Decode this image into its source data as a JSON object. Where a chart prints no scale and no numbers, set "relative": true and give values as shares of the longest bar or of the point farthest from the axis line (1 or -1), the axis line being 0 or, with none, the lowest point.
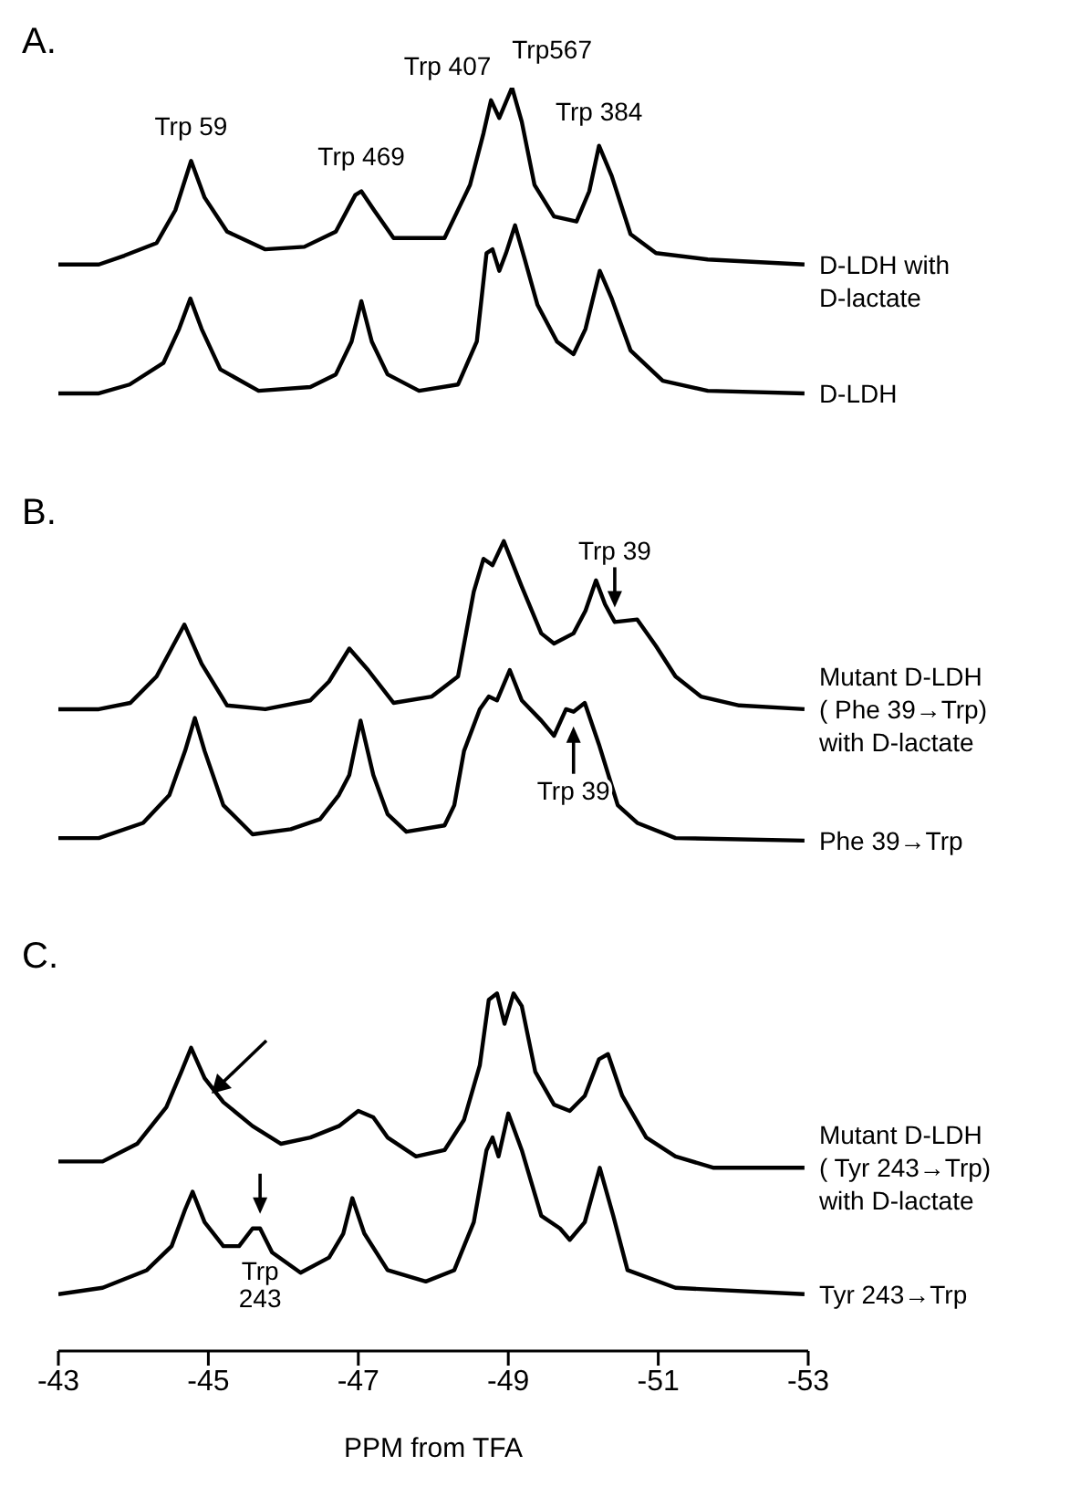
{
  "chart_data": {
    "type": "line",
    "relative": true,
    "xlim": [
      -43,
      -53
    ],
    "xticks": [
      -43,
      -45,
      -47,
      -49,
      -51,
      -53
    ],
    "xlabel": "PPM from TFA",
    "series": [
      {
        "name": "D-LDH with\nD-lactate",
        "color": "#000000",
        "x": [
          -43.0,
          -43.54,
          -43.88,
          -44.31,
          -44.56,
          -44.77,
          -44.95,
          -45.25,
          -45.76,
          -46.28,
          -46.7,
          -46.96,
          -47.04,
          -47.21,
          -47.47,
          -47.9,
          -48.15,
          -48.49,
          -48.67,
          -48.77,
          -48.88,
          -49.05,
          -49.18,
          -49.35,
          -49.61,
          -49.91,
          -50.08,
          -50.21,
          -50.38,
          -50.63,
          -50.97,
          -51.66,
          -52.95
        ],
        "values": [
          0.86,
          0.86,
          0.867,
          0.877,
          0.903,
          0.942,
          0.913,
          0.886,
          0.872,
          0.874,
          0.886,
          0.915,
          0.918,
          0.903,
          0.881,
          0.881,
          0.881,
          0.923,
          0.964,
          0.99,
          0.976,
          1.0,
          0.973,
          0.923,
          0.898,
          0.894,
          0.918,
          0.954,
          0.93,
          0.884,
          0.869,
          0.864,
          0.86
        ]
      },
      {
        "name": "D-LDH",
        "color": "#000000",
        "x": [
          -43.0,
          -43.54,
          -43.95,
          -44.4,
          -44.61,
          -44.76,
          -44.91,
          -45.16,
          -45.67,
          -46.36,
          -46.7,
          -46.91,
          -47.04,
          -47.18,
          -47.39,
          -47.81,
          -48.33,
          -48.58,
          -48.71,
          -48.79,
          -48.88,
          -48.97,
          -49.09,
          -49.22,
          -49.39,
          -49.65,
          -49.87,
          -50.03,
          -50.22,
          -50.38,
          -50.63,
          -51.06,
          -51.66,
          -52.95
        ],
        "values": [
          0.758,
          0.758,
          0.765,
          0.782,
          0.809,
          0.833,
          0.809,
          0.777,
          0.76,
          0.763,
          0.773,
          0.799,
          0.831,
          0.799,
          0.773,
          0.76,
          0.765,
          0.799,
          0.869,
          0.872,
          0.855,
          0.869,
          0.891,
          0.864,
          0.828,
          0.799,
          0.789,
          0.809,
          0.855,
          0.833,
          0.792,
          0.768,
          0.76,
          0.758
        ]
      },
      {
        "name": "Mutant D-LDH\n( Phe 39→Trp)\nwith D-lactate",
        "color": "#000000",
        "x": [
          -43.0,
          -43.54,
          -43.96,
          -44.31,
          -44.68,
          -44.91,
          -45.25,
          -45.76,
          -46.36,
          -46.61,
          -46.88,
          -47.13,
          -47.47,
          -47.98,
          -48.33,
          -48.54,
          -48.67,
          -48.79,
          -48.94,
          -49.18,
          -49.44,
          -49.61,
          -49.87,
          -50.03,
          -50.17,
          -50.29,
          -50.42,
          -50.72,
          -50.97,
          -51.23,
          -51.57,
          -52.08,
          -52.95
        ],
        "values": [
          0.508,
          0.508,
          0.513,
          0.534,
          0.575,
          0.544,
          0.511,
          0.508,
          0.515,
          0.53,
          0.556,
          0.539,
          0.513,
          0.518,
          0.534,
          0.601,
          0.627,
          0.622,
          0.641,
          0.605,
          0.568,
          0.56,
          0.568,
          0.586,
          0.61,
          0.591,
          0.577,
          0.579,
          0.558,
          0.534,
          0.518,
          0.511,
          0.508
        ]
      },
      {
        "name": "Phe 39→Trp",
        "color": "#000000",
        "x": [
          -43.0,
          -43.54,
          -44.13,
          -44.48,
          -44.69,
          -44.82,
          -44.95,
          -45.2,
          -45.59,
          -46.1,
          -46.49,
          -46.74,
          -46.88,
          -47.03,
          -47.2,
          -47.39,
          -47.64,
          -48.15,
          -48.28,
          -48.41,
          -48.62,
          -48.74,
          -48.85,
          -49.02,
          -49.18,
          -49.44,
          -49.61,
          -49.77,
          -49.87,
          -50.02,
          -50.21,
          -50.46,
          -50.72,
          -51.23,
          -52.95
        ],
        "values": [
          0.406,
          0.406,
          0.418,
          0.44,
          0.475,
          0.501,
          0.475,
          0.432,
          0.409,
          0.413,
          0.421,
          0.44,
          0.456,
          0.499,
          0.456,
          0.425,
          0.411,
          0.416,
          0.432,
          0.475,
          0.508,
          0.518,
          0.515,
          0.539,
          0.515,
          0.499,
          0.487,
          0.508,
          0.506,
          0.513,
          0.48,
          0.432,
          0.418,
          0.406,
          0.404
        ]
      },
      {
        "name": "Mutant D-LDH\n( Tyr 243→Trp)\nwith D-lactate",
        "color": "#000000",
        "x": [
          -43.0,
          -43.59,
          -44.05,
          -44.44,
          -44.64,
          -44.77,
          -44.95,
          -45.2,
          -45.59,
          -45.97,
          -46.36,
          -46.74,
          -47.0,
          -47.2,
          -47.39,
          -47.77,
          -48.15,
          -48.41,
          -48.62,
          -48.74,
          -48.85,
          -48.95,
          -49.07,
          -49.18,
          -49.36,
          -49.61,
          -49.82,
          -50.02,
          -50.21,
          -50.33,
          -50.52,
          -50.84,
          -51.23,
          -51.74,
          -52.95
        ],
        "values": [
          0.15,
          0.15,
          0.164,
          0.193,
          0.221,
          0.24,
          0.216,
          0.197,
          0.178,
          0.164,
          0.169,
          0.178,
          0.19,
          0.185,
          0.169,
          0.154,
          0.159,
          0.183,
          0.226,
          0.278,
          0.283,
          0.259,
          0.283,
          0.273,
          0.221,
          0.195,
          0.19,
          0.202,
          0.231,
          0.235,
          0.202,
          0.169,
          0.154,
          0.145,
          0.145
        ]
      },
      {
        "name": "Tyr 243→Trp",
        "color": "#000000",
        "x": [
          -43.0,
          -43.59,
          -44.18,
          -44.51,
          -44.69,
          -44.79,
          -44.95,
          -45.2,
          -45.41,
          -45.59,
          -45.69,
          -45.85,
          -46.23,
          -46.61,
          -46.8,
          -46.92,
          -47.08,
          -47.39,
          -47.9,
          -48.28,
          -48.54,
          -48.71,
          -48.79,
          -48.87,
          -49.0,
          -49.18,
          -49.44,
          -49.69,
          -49.82,
          -50.02,
          -50.22,
          -50.4,
          -50.59,
          -51.23,
          -52.95
        ],
        "values": [
          0.045,
          0.05,
          0.064,
          0.083,
          0.112,
          0.126,
          0.102,
          0.083,
          0.083,
          0.097,
          0.097,
          0.078,
          0.062,
          0.074,
          0.093,
          0.121,
          0.093,
          0.064,
          0.055,
          0.064,
          0.102,
          0.159,
          0.169,
          0.154,
          0.188,
          0.159,
          0.107,
          0.097,
          0.088,
          0.102,
          0.145,
          0.107,
          0.064,
          0.05,
          0.045
        ]
      }
    ],
    "annotations": [
      "A.",
      {
        "text": "Trp 59",
        "x": -44.77,
        "y": 0.942
      },
      {
        "text": "Trp 469",
        "x": -47.04,
        "y": 0.918
      },
      {
        "text": "Trp 407",
        "x": -48.77,
        "y": 0.99
      },
      {
        "text": "Trp567",
        "x": -49.05,
        "y": 1.0
      },
      {
        "text": "Trp 384",
        "x": -50.21,
        "y": 0.954
      },
      "B.",
      {
        "text": "Trp 39",
        "x": -50.42,
        "y": 0.577
      },
      {
        "text": "Trp 39",
        "x": -49.87,
        "y": 0.506
      },
      "C.",
      {
        "text": "Trp\n243",
        "x": -45.69,
        "y": 0.097
      }
    ]
  }
}
